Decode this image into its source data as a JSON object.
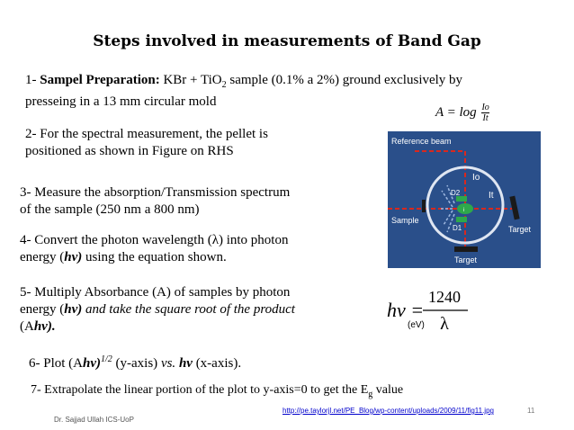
{
  "title": "Steps involved in measurements of Band Gap",
  "steps": {
    "s1_num": "1- ",
    "s1_label": "Sampel Preparation:",
    "s1_text_a": " KBr + TiO",
    "s1_sub": "2",
    "s1_text_b": " sample (0.1% a 2%) ground exclusively by",
    "s1_line2": "presseing in a 13 mm circular mold",
    "s2_line1": "2- For the spectral measurement, the pellet is",
    "s2_line2": "positioned as shown in Figure on RHS",
    "s3_line1": "3- Measure the absorption/Transmission spectrum",
    "s3_line2": "of the sample (250 nm a 800 nm)",
    "s4_line1": "4- Convert the photon wavelength (λ) into photon",
    "s4_line2_a": "energy (",
    "s4_hv": "hν)",
    "s4_line2_b": " using the equation shown.",
    "s5_line1": "5- Multiply Absorbance (A) of samples by photon",
    "s5_line2_a": "energy (",
    "s5_hv": "hν)",
    "s5_line2_b": " and take the square root of the product",
    "s5_line3_a": "(A",
    "s5_hv2": "hν).",
    "s6_a": "6- Plot (A",
    "s6_hv": "hν)",
    "s6_sup": "1/2",
    "s6_b": " (y-axis) ",
    "s6_vs": "vs.",
    "s6_c": " ",
    "s6_hv2": "hν",
    "s6_d": " (x-axis).",
    "s7_a": "7- Extrapolate the linear portion of the plot to y-axis=0 to get the E",
    "s7_sub": "g",
    "s7_b": " value"
  },
  "formula_absorbance": {
    "lhs": "A = log",
    "numerator": "Io",
    "denominator": "It"
  },
  "figure": {
    "reference_beam": "Reference beam",
    "io": "Io",
    "it": "It",
    "d2": "D2",
    "d1": "D1",
    "center": "i",
    "sample": "Sample",
    "target_right": "Target",
    "target_bottom": "Target"
  },
  "energy_equation": {
    "lhs": "hν =",
    "numerator": "1240",
    "denominator": "λ",
    "unit": "(eV)"
  },
  "footer": {
    "author": "Dr. Sajjad Ullah ICS-UoP",
    "link": "http://pe.taylorjl.net/PE_Blog/wp-content/uploads/2009/11/fig11.jpg",
    "page_number": "11"
  },
  "colors": {
    "figure_bg": "#2a4f8a",
    "beam_red": "#d9281e",
    "sphere_green": "#2ea84b"
  }
}
